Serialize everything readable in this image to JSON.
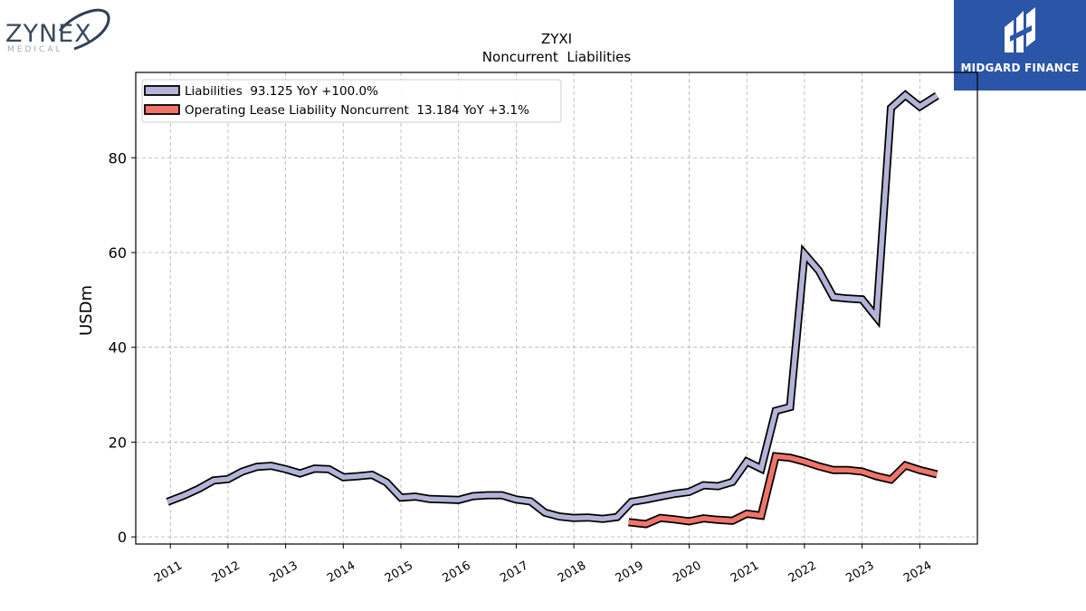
{
  "logos": {
    "left": {
      "word": "ZYNEX",
      "sub": "MEDICAL"
    },
    "right": {
      "word": "MIDGARD FINANCE"
    }
  },
  "chart_data": {
    "type": "line",
    "title": "ZYXI",
    "subtitle": "Noncurrent  Liabilities",
    "xlabel": "",
    "ylabel": "USDm",
    "xlim": [
      2010.4,
      2025.0
    ],
    "ylim": [
      -1.5,
      98
    ],
    "yticks": [
      0,
      20,
      40,
      60,
      80
    ],
    "xticks": [
      2011,
      2012,
      2013,
      2014,
      2015,
      2016,
      2017,
      2018,
      2019,
      2020,
      2021,
      2022,
      2023,
      2024
    ],
    "grid": true,
    "legend_position": "top-left",
    "series": [
      {
        "name": "Liabilities",
        "legend_label": "Liabilities  93.125 YoY +100.0%",
        "color": "#b4b4d8",
        "points": [
          [
            2010.95,
            7.4
          ],
          [
            2011.25,
            8.8
          ],
          [
            2011.5,
            10.2
          ],
          [
            2011.75,
            11.9
          ],
          [
            2012.0,
            12.2
          ],
          [
            2012.25,
            13.8
          ],
          [
            2012.5,
            14.8
          ],
          [
            2012.75,
            15.0
          ],
          [
            2013.0,
            14.3
          ],
          [
            2013.25,
            13.4
          ],
          [
            2013.5,
            14.4
          ],
          [
            2013.75,
            14.3
          ],
          [
            2014.0,
            12.6
          ],
          [
            2014.25,
            12.8
          ],
          [
            2014.5,
            13.1
          ],
          [
            2014.75,
            11.5
          ],
          [
            2015.0,
            8.3
          ],
          [
            2015.25,
            8.5
          ],
          [
            2015.5,
            8.0
          ],
          [
            2015.75,
            7.9
          ],
          [
            2016.0,
            7.8
          ],
          [
            2016.25,
            8.6
          ],
          [
            2016.5,
            8.8
          ],
          [
            2016.75,
            8.8
          ],
          [
            2017.0,
            7.9
          ],
          [
            2017.25,
            7.5
          ],
          [
            2017.5,
            5.1
          ],
          [
            2017.75,
            4.3
          ],
          [
            2018.0,
            4.0
          ],
          [
            2018.25,
            4.1
          ],
          [
            2018.5,
            3.8
          ],
          [
            2018.75,
            4.2
          ],
          [
            2019.0,
            7.4
          ],
          [
            2019.25,
            7.9
          ],
          [
            2019.5,
            8.5
          ],
          [
            2019.75,
            9.1
          ],
          [
            2020.0,
            9.5
          ],
          [
            2020.25,
            10.9
          ],
          [
            2020.5,
            10.7
          ],
          [
            2020.75,
            11.6
          ],
          [
            2021.0,
            15.9
          ],
          [
            2021.25,
            14.4
          ],
          [
            2021.5,
            26.6
          ],
          [
            2021.75,
            27.4
          ],
          [
            2022.0,
            59.7
          ],
          [
            2022.25,
            56.2
          ],
          [
            2022.5,
            50.6
          ],
          [
            2022.75,
            50.3
          ],
          [
            2023.0,
            50.1
          ],
          [
            2023.25,
            46.3
          ],
          [
            2023.5,
            90.5
          ],
          [
            2023.75,
            93.2
          ],
          [
            2024.0,
            90.8
          ],
          [
            2024.3,
            93.1
          ]
        ]
      },
      {
        "name": "Operating Lease Liability Noncurrent",
        "legend_label": "Operating Lease Liability Noncurrent  13.184 YoY +3.1%",
        "color": "#f0746a",
        "points": [
          [
            2018.95,
            3.1
          ],
          [
            2019.25,
            2.7
          ],
          [
            2019.5,
            4.0
          ],
          [
            2019.75,
            3.7
          ],
          [
            2020.0,
            3.3
          ],
          [
            2020.25,
            3.9
          ],
          [
            2020.5,
            3.6
          ],
          [
            2020.75,
            3.4
          ],
          [
            2021.0,
            4.9
          ],
          [
            2021.25,
            4.5
          ],
          [
            2021.5,
            17.0
          ],
          [
            2021.75,
            16.7
          ],
          [
            2022.0,
            15.9
          ],
          [
            2022.25,
            14.9
          ],
          [
            2022.5,
            14.1
          ],
          [
            2022.75,
            14.1
          ],
          [
            2023.0,
            13.8
          ],
          [
            2023.25,
            12.8
          ],
          [
            2023.5,
            12.1
          ],
          [
            2023.75,
            15.1
          ],
          [
            2024.0,
            14.1
          ],
          [
            2024.3,
            13.2
          ]
        ]
      }
    ]
  }
}
